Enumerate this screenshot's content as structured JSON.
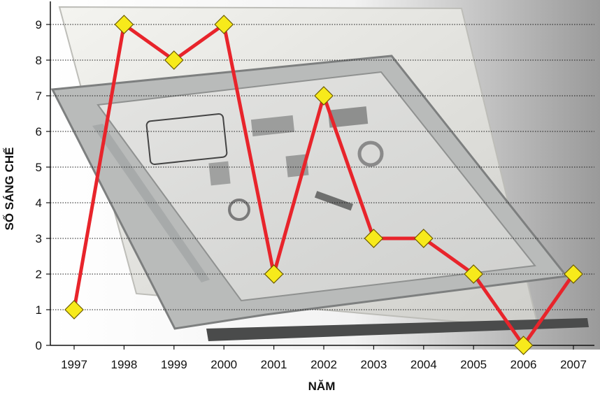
{
  "chart_data": {
    "type": "line",
    "title": "",
    "xlabel": "NĂM",
    "ylabel": "SỐ SÁNG CHẾ",
    "x": [
      "1997",
      "1998",
      "1999",
      "2000",
      "2001",
      "2002",
      "2003",
      "2004",
      "2005",
      "2006",
      "2007"
    ],
    "series": [
      {
        "values": [
          1,
          9,
          8,
          9,
          2,
          7,
          3,
          3,
          2,
          0,
          2
        ]
      }
    ],
    "yticks": [
      0,
      1,
      2,
      3,
      4,
      5,
      6,
      7,
      8,
      9
    ],
    "ylim": [
      0,
      9
    ],
    "grid": "horizontal dotted",
    "line_color": "#e8242b",
    "marker": "diamond",
    "marker_color": "#f7ea1b",
    "background_image": "e-reader tablet photo (Home screen: Books, News, Images, Personal Documents, eBook Mall, Help, Search, Settings, Menu)"
  }
}
